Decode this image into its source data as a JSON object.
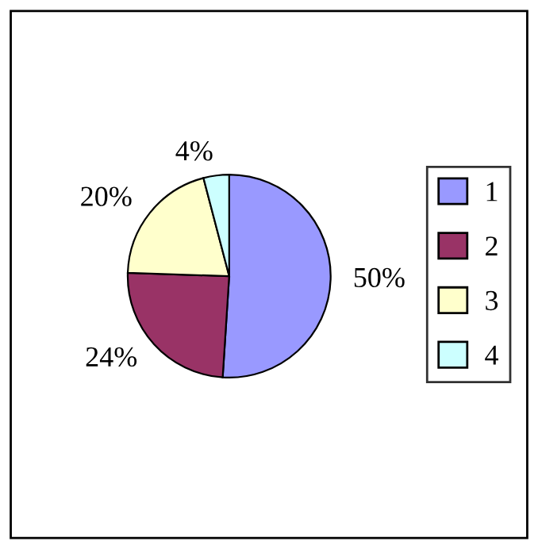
{
  "chart_data": {
    "type": "pie",
    "categories": [
      "1",
      "2",
      "3",
      "4"
    ],
    "values": [
      50,
      24,
      20,
      4
    ],
    "colors": [
      "#9999ff",
      "#993366",
      "#ffffcc",
      "#ccffff"
    ],
    "value_labels": [
      "50%",
      "24%",
      "20%",
      "4%"
    ],
    "legend": "right"
  }
}
